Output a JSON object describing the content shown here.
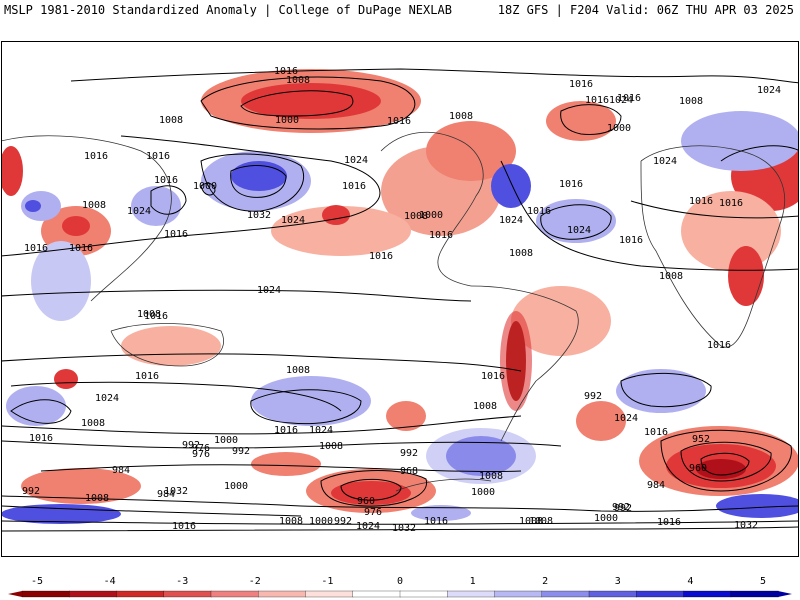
{
  "header": {
    "left_title": "MSLP 1981-2010 Standardized Anomaly | College of DuPage NEXLAB",
    "right_title": "18Z GFS | F204 Valid: 06Z THU APR 03 2025"
  },
  "colorbar": {
    "ticks": [
      "-5",
      "-4",
      "-3",
      "-2",
      "-1",
      "0",
      "1",
      "2",
      "3",
      "4",
      "5"
    ],
    "colors": [
      "#8b0000",
      "#b0101a",
      "#d02828",
      "#e05050",
      "#f08080",
      "#f8b8b0",
      "#fde0dc",
      "#ffffff",
      "#ffffff",
      "#dcdcfa",
      "#b8b8f4",
      "#8c8cec",
      "#6060e0",
      "#3838d8",
      "#0a0ad0",
      "#0000a0"
    ]
  },
  "map": {
    "warm_color": "#f08070",
    "warm_dark": "#e03838",
    "cool_color": "#b0b0f0",
    "cool_dark": "#5050e0",
    "contour_labels": [
      "1016",
      "1008",
      "1000",
      "1016",
      "1008",
      "1016",
      "1016",
      "1000",
      "1016",
      "1016",
      "1024",
      "1016",
      "1016",
      "1008",
      "1016",
      "1024",
      "1032",
      "1024",
      "1016",
      "1008",
      "1024",
      "1016",
      "1000",
      "1016",
      "1024",
      "1016",
      "1008",
      "1016",
      "1008",
      "1016",
      "1008",
      "1008",
      "1016",
      "1016",
      "1024",
      "1024",
      "1016",
      "1016",
      "1024",
      "1016",
      "1016",
      "1008",
      "1000",
      "1024",
      "1008",
      "1016",
      "1016",
      "1024",
      "1016",
      "1008",
      "992",
      "1000",
      "984",
      "976",
      "992",
      "1008",
      "968",
      "1008",
      "992",
      "984",
      "1000",
      "1016",
      "1024",
      "1032",
      "992",
      "960",
      "976",
      "1008",
      "1000",
      "992",
      "1024",
      "1032",
      "1016",
      "1008",
      "1024",
      "1000",
      "992",
      "976",
      "952",
      "960",
      "984",
      "992",
      "1016",
      "1032",
      "1000",
      "992",
      "1008",
      "1016",
      "1008",
      "1008",
      "1016"
    ]
  }
}
